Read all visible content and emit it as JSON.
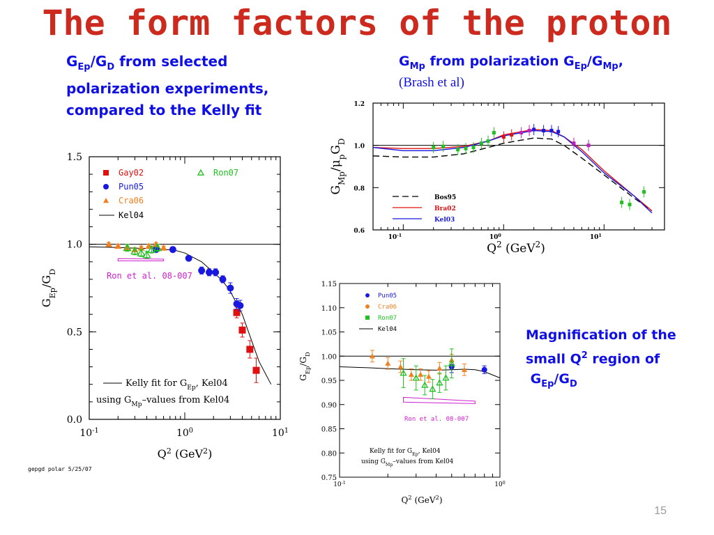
{
  "slide": {
    "title": "The form factors of the proton",
    "page_number": "15",
    "left_caption": {
      "line1_pre": "G",
      "line1_sub1": "Ep",
      "line1_mid": "/G",
      "line1_sub2": "D",
      "line1_post": " from selected",
      "line2": "polarization experiments,",
      "line3": "compared to the Kelly fit"
    },
    "right_caption": {
      "pre": "G",
      "sub1": "Mp",
      "mid": " from polarization G",
      "sub2": "Ep",
      "mid2": "/G",
      "sub3": "Mp",
      "post": ",",
      "line2": "(Brash et al)"
    },
    "magnification_caption": {
      "line1": "Magnification of the",
      "line2_pre": "small Q",
      "line2_sup": "2",
      "line2_post": " region of",
      "line3_pre": "G",
      "line3_sub1": "Ep",
      "line3_mid": "/G",
      "line3_sub2": "D"
    },
    "footnote": "gepgd polar 5/25/07",
    "colors": {
      "title": "#cc2a1e",
      "caption": "#1010e6"
    }
  },
  "chart_data": [
    {
      "type": "scatter",
      "xscale": "log",
      "xlim": [
        0.1,
        10
      ],
      "ylim": [
        0,
        1.5
      ],
      "ylabel_pre": "G",
      "ylabel_sub": "Ep",
      "ylabel_post": "/G",
      "ylabel_sub2": "D",
      "xlabel_pre": "Q",
      "xlabel_sup": "2",
      "xlabel_post": " (GeV",
      "xlabel_sup2": "2",
      "xlabel_end": ")",
      "xticks": [
        "10",
        "10",
        "10"
      ],
      "xtick_exps": [
        "-1",
        "0",
        "1"
      ],
      "yticks": [
        "0.0",
        "0.5",
        "1.0",
        "1.5"
      ],
      "legend": [
        {
          "name": "Gay02",
          "color": "#e01010",
          "marker": "square"
        },
        {
          "name": "Pun05",
          "color": "#1818e0",
          "marker": "circle"
        },
        {
          "name": "Cra06",
          "color": "#f08020",
          "marker": "triangle"
        },
        {
          "name": "Kel04",
          "color": "#000000",
          "marker": "line"
        },
        {
          "name": "Ron07",
          "color": "#20c020",
          "marker": "open-triangle"
        }
      ],
      "annotation": "Ron et al. 08-007",
      "kelly_note_line1_pre": "Kelly fit for G",
      "kelly_note_line1_sub": "Ep",
      "kelly_note_line1_post": ", Kel04",
      "kelly_note_line2_pre": "using G",
      "kelly_note_line2_sub": "Mp",
      "kelly_note_line2_post": "–values from Kel04",
      "series": [
        {
          "name": "Gay02",
          "points": [
            [
              3.5,
              0.61
            ],
            [
              4.0,
              0.51
            ],
            [
              4.8,
              0.4
            ],
            [
              5.6,
              0.28
            ]
          ],
          "err": [
            0.03,
            0.04,
            0.05,
            0.07
          ]
        },
        {
          "name": "Pun05",
          "points": [
            [
              0.5,
              0.97
            ],
            [
              0.75,
              0.97
            ],
            [
              1.1,
              0.92
            ],
            [
              1.5,
              0.85
            ],
            [
              1.8,
              0.84
            ],
            [
              2.1,
              0.84
            ],
            [
              2.5,
              0.8
            ],
            [
              3.0,
              0.75
            ],
            [
              3.5,
              0.66
            ],
            [
              3.8,
              0.65
            ]
          ],
          "err": [
            0.01,
            0.01,
            0.01,
            0.02,
            0.02,
            0.02,
            0.02,
            0.03,
            0.03,
            0.03
          ]
        },
        {
          "name": "Cra06",
          "points": [
            [
              0.16,
              1.0
            ],
            [
              0.2,
              0.99
            ],
            [
              0.25,
              0.98
            ],
            [
              0.3,
              0.97
            ],
            [
              0.35,
              0.98
            ],
            [
              0.42,
              0.99
            ],
            [
              0.5,
              1.0
            ],
            [
              0.6,
              0.98
            ]
          ],
          "err": [
            0.01,
            0.01,
            0.01,
            0.01,
            0.01,
            0.01,
            0.01,
            0.01
          ]
        },
        {
          "name": "Ron07",
          "points": [
            [
              0.25,
              0.98
            ],
            [
              0.3,
              0.96
            ],
            [
              0.35,
              0.95
            ],
            [
              0.4,
              0.94
            ],
            [
              0.45,
              0.97
            ],
            [
              0.52,
              0.98
            ]
          ],
          "err": [
            0.02,
            0.02,
            0.02,
            0.02,
            0.02,
            0.02
          ]
        }
      ],
      "kelly_fit": [
        [
          0.1,
          0.985
        ],
        [
          0.2,
          0.982
        ],
        [
          0.3,
          0.978
        ],
        [
          0.5,
          0.975
        ],
        [
          0.8,
          0.965
        ],
        [
          1.0,
          0.95
        ],
        [
          1.5,
          0.9
        ],
        [
          2.0,
          0.84
        ],
        [
          2.5,
          0.79
        ],
        [
          3.0,
          0.73
        ],
        [
          4.0,
          0.6
        ],
        [
          5.0,
          0.45
        ],
        [
          6.0,
          0.33
        ],
        [
          8.0,
          0.2
        ]
      ]
    },
    {
      "type": "line",
      "xscale": "log",
      "xlim": [
        0.05,
        40
      ],
      "ylim": [
        0.6,
        1.2
      ],
      "ylabel_pre": "G",
      "ylabel_sub": "Mp",
      "ylabel_mid": "/μ",
      "ylabel_sub2": "p",
      "ylabel_post": "G",
      "ylabel_sub3": "D",
      "xlabel_pre": "Q",
      "xlabel_sup": "2",
      "xlabel_post": " (GeV",
      "xlabel_sup2": "2",
      "xlabel_end": ")",
      "xticks": [
        "10",
        "10",
        "10"
      ],
      "xtick_exps": [
        "-1",
        "0",
        "1"
      ],
      "yticks": [
        "0.6",
        "0.8",
        "1.0",
        "1.2"
      ],
      "legend": [
        {
          "name": "Bos95",
          "color": "#000000",
          "style": "dashed"
        },
        {
          "name": "Bra02",
          "color": "#e01010",
          "style": "solid"
        },
        {
          "name": "Kel03",
          "color": "#1818e0",
          "style": "solid"
        }
      ],
      "series": [
        {
          "name": "Bos95",
          "points": [
            [
              0.05,
              0.95
            ],
            [
              0.1,
              0.945
            ],
            [
              0.2,
              0.945
            ],
            [
              0.4,
              0.96
            ],
            [
              0.7,
              0.99
            ],
            [
              1.0,
              1.01
            ],
            [
              2.0,
              1.035
            ],
            [
              3.0,
              1.03
            ],
            [
              4.0,
              1.0
            ],
            [
              6.0,
              0.94
            ],
            [
              10.0,
              0.86
            ],
            [
              20.0,
              0.75
            ],
            [
              30.0,
              0.69
            ]
          ]
        },
        {
          "name": "Bra02",
          "points": [
            [
              0.05,
              0.99
            ],
            [
              0.1,
              0.985
            ],
            [
              0.2,
              0.985
            ],
            [
              0.4,
              0.995
            ],
            [
              0.7,
              1.02
            ],
            [
              1.0,
              1.05
            ],
            [
              2.0,
              1.075
            ],
            [
              3.0,
              1.07
            ],
            [
              4.0,
              1.04
            ],
            [
              6.0,
              0.98
            ],
            [
              10.0,
              0.88
            ],
            [
              20.0,
              0.76
            ],
            [
              30.0,
              0.69
            ]
          ]
        },
        {
          "name": "Kel03",
          "points": [
            [
              0.05,
              0.99
            ],
            [
              0.1,
              0.975
            ],
            [
              0.2,
              0.975
            ],
            [
              0.4,
              0.99
            ],
            [
              0.7,
              1.02
            ],
            [
              1.0,
              1.045
            ],
            [
              2.0,
              1.07
            ],
            [
              3.0,
              1.065
            ],
            [
              4.0,
              1.04
            ],
            [
              6.0,
              0.97
            ],
            [
              10.0,
              0.87
            ],
            [
              20.0,
              0.76
            ],
            [
              30.0,
              0.68
            ]
          ]
        }
      ],
      "points": [
        {
          "x": 0.2,
          "y": 0.99,
          "color": "#20c020"
        },
        {
          "x": 0.25,
          "y": 0.995,
          "color": "#20c020"
        },
        {
          "x": 0.35,
          "y": 0.98,
          "color": "#20c020"
        },
        {
          "x": 0.42,
          "y": 0.985,
          "color": "#20c020"
        },
        {
          "x": 0.5,
          "y": 0.99,
          "color": "#20c020"
        },
        {
          "x": 0.6,
          "y": 1.01,
          "color": "#20c020"
        },
        {
          "x": 0.7,
          "y": 1.02,
          "color": "#20c020"
        },
        {
          "x": 0.8,
          "y": 1.06,
          "color": "#20c020"
        },
        {
          "x": 1.0,
          "y": 1.04,
          "color": "#e01010"
        },
        {
          "x": 1.2,
          "y": 1.05,
          "color": "#e01010"
        },
        {
          "x": 1.5,
          "y": 1.06,
          "color": "#c020c0"
        },
        {
          "x": 1.8,
          "y": 1.07,
          "color": "#c020c0"
        },
        {
          "x": 2.0,
          "y": 1.075,
          "color": "#1818e0"
        },
        {
          "x": 2.5,
          "y": 1.07,
          "color": "#1818e0"
        },
        {
          "x": 3.0,
          "y": 1.07,
          "color": "#1818e0"
        },
        {
          "x": 3.5,
          "y": 1.065,
          "color": "#1818e0"
        },
        {
          "x": 5.0,
          "y": 1.01,
          "color": "#c020c0"
        },
        {
          "x": 7.0,
          "y": 1.0,
          "color": "#c020c0"
        },
        {
          "x": 15.0,
          "y": 0.73,
          "color": "#20c020"
        },
        {
          "x": 18.0,
          "y": 0.72,
          "color": "#20c020"
        },
        {
          "x": 25.0,
          "y": 0.78,
          "color": "#20c020"
        }
      ]
    },
    {
      "type": "scatter",
      "xscale": "log",
      "xlim": [
        0.1,
        1.0
      ],
      "ylim": [
        0.75,
        1.15
      ],
      "ylabel_pre": "G",
      "ylabel_sub": "Ep",
      "ylabel_post": "/G",
      "ylabel_sub2": "D",
      "xlabel_pre": "Q",
      "xlabel_sup": "2",
      "xlabel_post": " (GeV",
      "xlabel_sup2": "2",
      "xlabel_end": ")",
      "xticks": [
        "10",
        "10"
      ],
      "xtick_exps": [
        "-1",
        "0"
      ],
      "yticks": [
        "0.75",
        "0.80",
        "0.85",
        "0.90",
        "0.95",
        "1.00",
        "1.05",
        "1.10",
        "1.15"
      ],
      "legend": [
        {
          "name": "Pun05",
          "color": "#1818e0",
          "marker": "circle"
        },
        {
          "name": "Cra06",
          "color": "#f08020",
          "marker": "circle"
        },
        {
          "name": "Ron07",
          "color": "#20c020",
          "marker": "square"
        },
        {
          "name": "Kel04",
          "color": "#000000",
          "marker": "line"
        }
      ],
      "annotation": "Ron et al. 08-007",
      "kelly_note_line1_pre": "Kelly fit for G",
      "kelly_note_line1_sub": "Ep",
      "kelly_note_line1_post": ", Kel04",
      "kelly_note_line2_pre": "using G",
      "kelly_note_line2_sub": "Mp",
      "kelly_note_line2_post": "–values from Kel04",
      "series": [
        {
          "name": "Pun05",
          "points": [
            [
              0.5,
              0.978
            ],
            [
              0.8,
              0.972
            ]
          ],
          "err": [
            0.012,
            0.008
          ]
        },
        {
          "name": "Cra06",
          "points": [
            [
              0.16,
              1.0
            ],
            [
              0.2,
              0.985
            ],
            [
              0.24,
              0.978
            ],
            [
              0.28,
              0.962
            ],
            [
              0.32,
              0.962
            ],
            [
              0.36,
              0.958
            ],
            [
              0.42,
              0.975
            ],
            [
              0.5,
              0.992
            ],
            [
              0.6,
              0.972
            ]
          ],
          "err": [
            0.012,
            0.012,
            0.012,
            0.012,
            0.012,
            0.012,
            0.012,
            0.012,
            0.012
          ]
        },
        {
          "name": "Ron07",
          "points": [
            [
              0.25,
              0.965
            ],
            [
              0.3,
              0.955
            ],
            [
              0.34,
              0.94
            ],
            [
              0.38,
              0.932
            ],
            [
              0.42,
              0.945
            ],
            [
              0.46,
              0.955
            ],
            [
              0.5,
              0.985
            ]
          ],
          "err": [
            0.03,
            0.025,
            0.02,
            0.02,
            0.02,
            0.025,
            0.03
          ]
        }
      ],
      "kelly_fit": [
        [
          0.1,
          0.978
        ],
        [
          0.15,
          0.976
        ],
        [
          0.2,
          0.974
        ],
        [
          0.3,
          0.972
        ],
        [
          0.4,
          0.971
        ],
        [
          0.5,
          0.972
        ],
        [
          0.6,
          0.973
        ],
        [
          0.7,
          0.972
        ],
        [
          0.8,
          0.968
        ],
        [
          1.0,
          0.955
        ]
      ]
    }
  ]
}
